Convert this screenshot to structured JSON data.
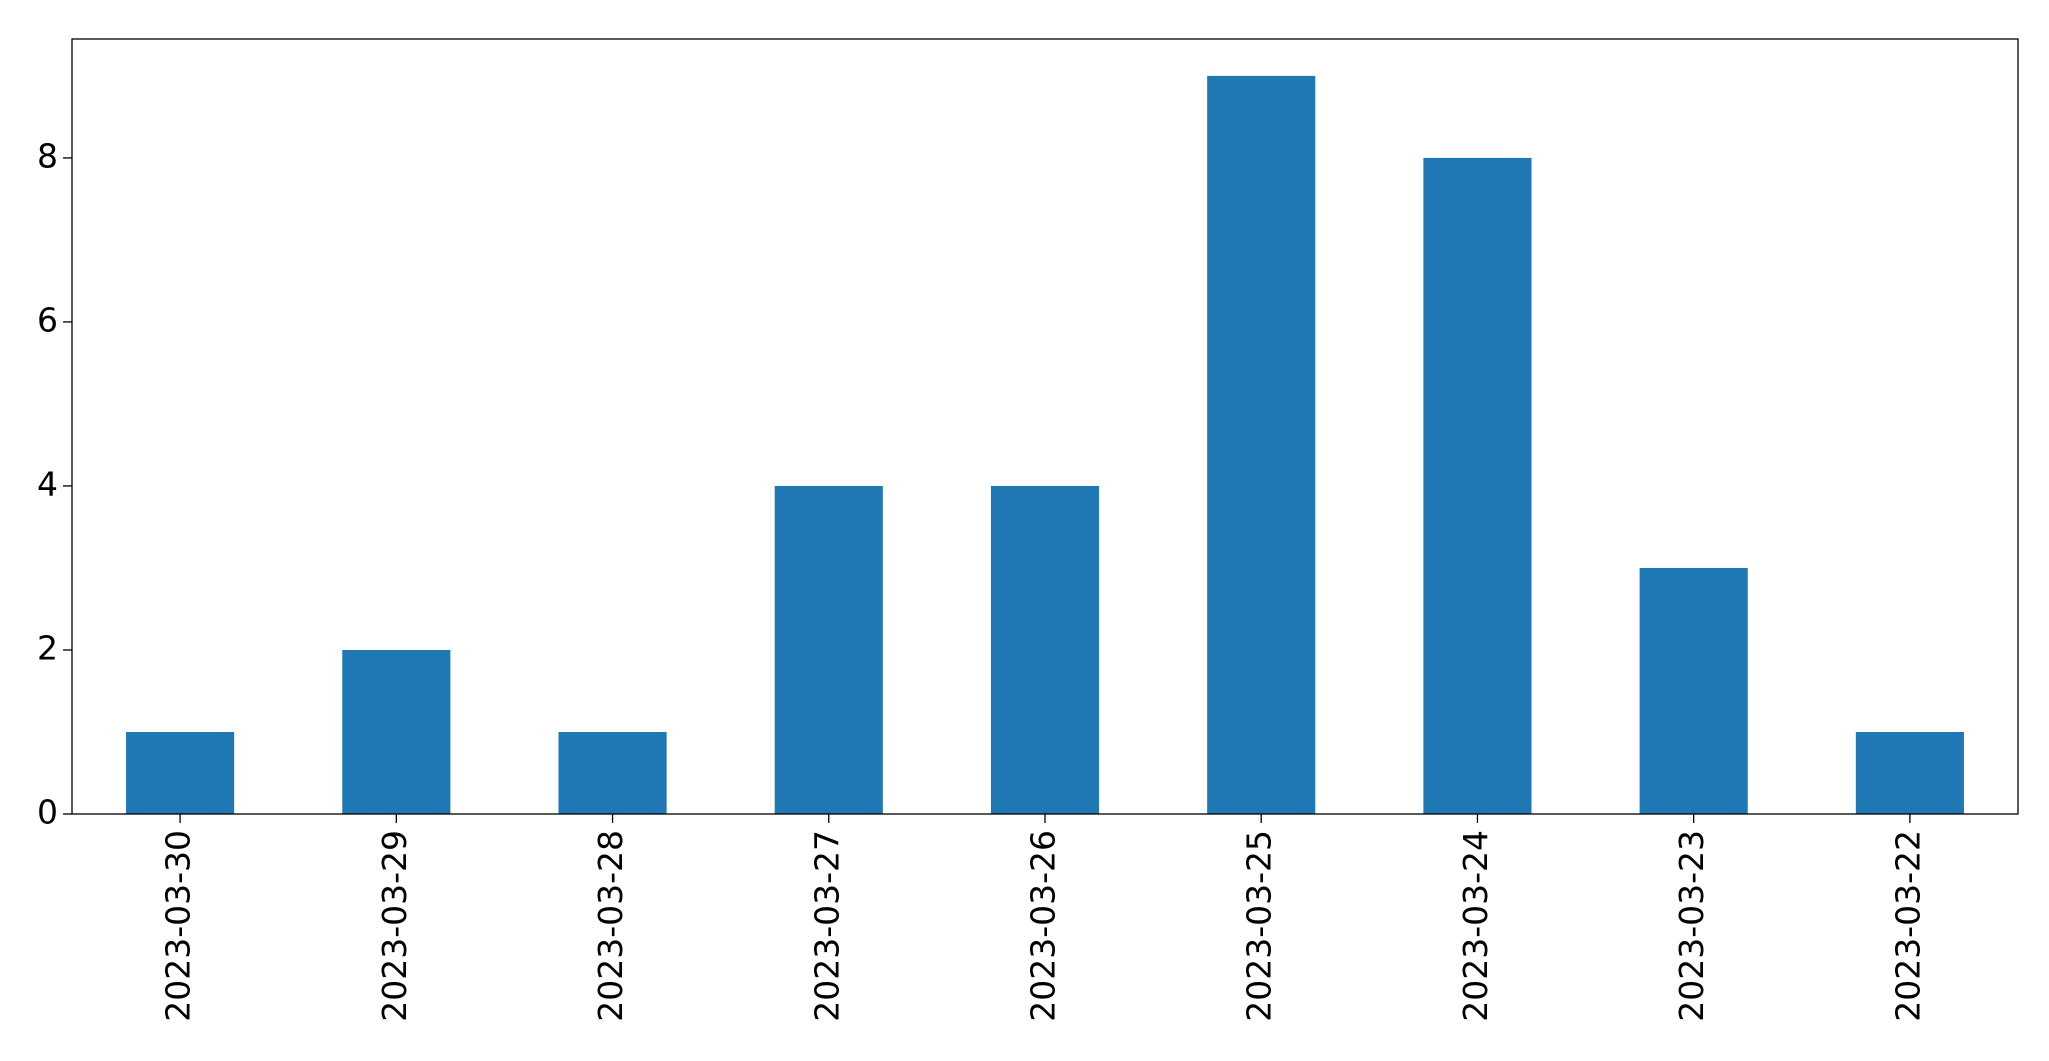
{
  "chart_data": {
    "type": "bar",
    "categories": [
      "2023-03-30",
      "2023-03-29",
      "2023-03-28",
      "2023-03-27",
      "2023-03-26",
      "2023-03-25",
      "2023-03-24",
      "2023-03-23",
      "2023-03-22"
    ],
    "values": [
      1,
      2,
      1,
      4,
      4,
      9,
      8,
      3,
      1
    ],
    "color": "#1f77b4",
    "ylim": [
      0,
      9.45
    ],
    "yticks": [
      0,
      2,
      4,
      6,
      8
    ],
    "grid": false
  }
}
